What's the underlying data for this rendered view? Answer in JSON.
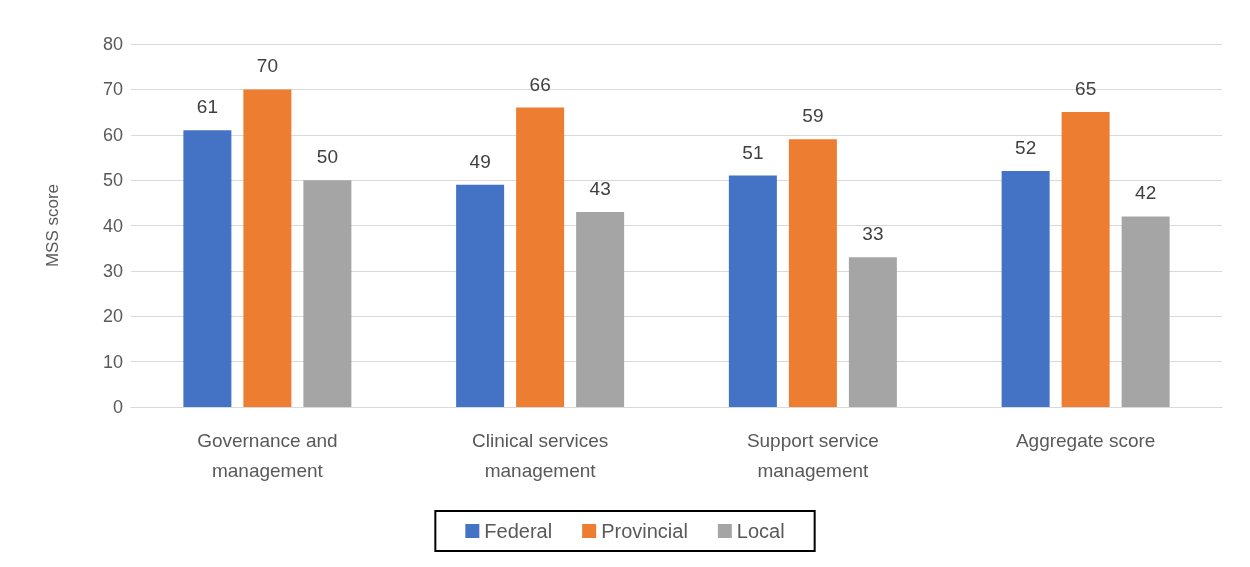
{
  "chart_data": {
    "type": "bar",
    "ylabel": "MSS score",
    "categories": [
      "Governance and\nmanagement",
      "Clinical services\nmanagement",
      "Support service\nmanagement",
      "Aggregate score"
    ],
    "series": [
      {
        "name": "Federal",
        "color": "#4472c4",
        "values": [
          61,
          49,
          51,
          52
        ]
      },
      {
        "name": "Provincial",
        "color": "#ed7d31",
        "values": [
          70,
          66,
          59,
          65
        ]
      },
      {
        "name": "Local",
        "color": "#a5a5a5",
        "values": [
          50,
          43,
          33,
          42
        ]
      }
    ],
    "ylim": [
      0,
      80
    ],
    "yticks": [
      0,
      10,
      20,
      30,
      40,
      50,
      60,
      70,
      80
    ],
    "grid": "y",
    "legend": "bottom",
    "data_labels": true
  }
}
